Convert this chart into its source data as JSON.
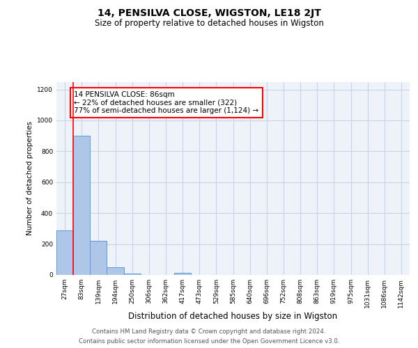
{
  "title": "14, PENSILVA CLOSE, WIGSTON, LE18 2JT",
  "subtitle": "Size of property relative to detached houses in Wigston",
  "xlabel": "Distribution of detached houses by size in Wigston",
  "ylabel": "Number of detached properties",
  "categories": [
    "27sqm",
    "83sqm",
    "139sqm",
    "194sqm",
    "250sqm",
    "306sqm",
    "362sqm",
    "417sqm",
    "473sqm",
    "529sqm",
    "585sqm",
    "640sqm",
    "696sqm",
    "752sqm",
    "808sqm",
    "863sqm",
    "919sqm",
    "975sqm",
    "1031sqm",
    "1086sqm",
    "1142sqm"
  ],
  "bar_heights": [
    290,
    900,
    220,
    50,
    10,
    0,
    0,
    15,
    0,
    0,
    0,
    0,
    0,
    0,
    0,
    0,
    0,
    0,
    0,
    0,
    0
  ],
  "bar_color": "#aec6e8",
  "bar_edge_color": "#5b9bd5",
  "grid_color": "#c8d4e8",
  "bg_color": "#eef2f9",
  "red_line_x": 0.5,
  "annotation_text": "14 PENSILVA CLOSE: 86sqm\n← 22% of detached houses are smaller (322)\n77% of semi-detached houses are larger (1,124) →",
  "ylim": [
    0,
    1250
  ],
  "yticks": [
    0,
    200,
    400,
    600,
    800,
    1000,
    1200
  ],
  "footer_line1": "Contains HM Land Registry data © Crown copyright and database right 2024.",
  "footer_line2": "Contains public sector information licensed under the Open Government Licence v3.0."
}
